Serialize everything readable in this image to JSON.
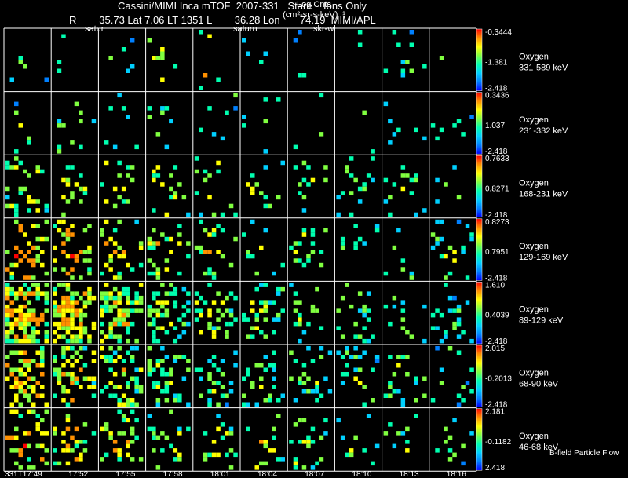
{
  "header": {
    "title": "Cassini/MIMI Inca mTOF  2007-331   Stare    Ions Only",
    "subtitle": "R        35.73 Lat 7.06 LT 1351 L        36.28 Lon       74.19  MIMI/APL",
    "units_line1": "Log Cnts",
    "units_line2": "(cm²-sr-s-keV)⁻¹"
  },
  "overlay_labels": [
    "satur",
    "saturn",
    "skr-wl"
  ],
  "footer": {
    "first_time": "331T17:49",
    "times": [
      "331T17:49",
      "17:52",
      "17:55",
      "17:58",
      "18:01",
      "18:04",
      "18:07",
      "18:10",
      "18:13",
      "18:16"
    ],
    "note": "B-field Particle Flow"
  },
  "colors": {
    "border": "#ffffff",
    "background": "#000000",
    "colormap": [
      "#0000ff",
      "#0080ff",
      "#00d0ff",
      "#00ffb0",
      "#80ff40",
      "#ffff00",
      "#ff9000",
      "#ff0000"
    ]
  },
  "chart_data": {
    "type": "heatmap",
    "description_grid": "7 energy-channel rows x 10 time columns of ENA images",
    "x_categories": [
      "331T17:49",
      "17:52",
      "17:55",
      "17:58",
      "18:01",
      "18:04",
      "18:07",
      "18:10",
      "18:13",
      "18:16"
    ],
    "rows": [
      {
        "species": "Oxygen",
        "energy": "331-589 keV",
        "cbar_max": "-0.3444",
        "cbar_mid": "-1.381",
        "cbar_min": "-2.418"
      },
      {
        "species": "Oxygen",
        "energy": "231-332 keV",
        "cbar_max": "0.3436",
        "cbar_mid": "1.037",
        "cbar_min": "-2.418"
      },
      {
        "species": "Oxygen",
        "energy": "168-231 keV",
        "cbar_max": "0.7633",
        "cbar_mid": "0.8271",
        "cbar_min": "-2.418"
      },
      {
        "species": "Oxygen",
        "energy": "129-169 keV",
        "cbar_max": "0.8273",
        "cbar_mid": "0.7951",
        "cbar_min": "-2.418"
      },
      {
        "species": "Oxygen",
        "energy": "89-129 keV",
        "cbar_max": "1.610",
        "cbar_mid": "0.4039",
        "cbar_min": "-2.418"
      },
      {
        "species": "Oxygen",
        "energy": "68-90 keV",
        "cbar_max": "2.015",
        "cbar_mid": "-0.2013",
        "cbar_min": "-2.418"
      },
      {
        "species": "Oxygen",
        "energy": "46-68 keV",
        "cbar_max": "2.181",
        "cbar_mid": "-0.1182",
        "cbar_min": "2.418"
      }
    ],
    "density": [
      [
        0.03,
        0.03,
        0.03,
        0.04,
        0.04,
        0.02,
        0.03,
        0.02,
        0.03,
        0.02
      ],
      [
        0.04,
        0.06,
        0.05,
        0.07,
        0.05,
        0.04,
        0.04,
        0.03,
        0.03,
        0.03
      ],
      [
        0.18,
        0.14,
        0.1,
        0.12,
        0.1,
        0.1,
        0.08,
        0.08,
        0.07,
        0.05
      ],
      [
        0.3,
        0.24,
        0.2,
        0.15,
        0.12,
        0.1,
        0.08,
        0.08,
        0.07,
        0.08
      ],
      [
        0.6,
        0.55,
        0.42,
        0.32,
        0.24,
        0.22,
        0.18,
        0.16,
        0.14,
        0.12
      ],
      [
        0.45,
        0.4,
        0.3,
        0.28,
        0.2,
        0.18,
        0.16,
        0.14,
        0.14,
        0.1
      ],
      [
        0.25,
        0.22,
        0.18,
        0.14,
        0.12,
        0.14,
        0.12,
        0.08,
        0.06,
        0.06
      ]
    ],
    "level": [
      [
        0.3,
        0.3,
        0.3,
        0.4,
        0.5,
        0.3,
        0.3,
        0.3,
        0.3,
        0.3
      ],
      [
        0.3,
        0.35,
        0.35,
        0.35,
        0.35,
        0.3,
        0.3,
        0.3,
        0.3,
        0.3
      ],
      [
        0.45,
        0.45,
        0.45,
        0.45,
        0.45,
        0.4,
        0.4,
        0.35,
        0.35,
        0.35
      ],
      [
        0.6,
        0.55,
        0.5,
        0.45,
        0.45,
        0.4,
        0.4,
        0.35,
        0.35,
        0.35
      ],
      [
        0.55,
        0.55,
        0.5,
        0.45,
        0.4,
        0.4,
        0.35,
        0.35,
        0.35,
        0.3
      ],
      [
        0.55,
        0.5,
        0.45,
        0.4,
        0.35,
        0.35,
        0.35,
        0.35,
        0.35,
        0.3
      ],
      [
        0.55,
        0.5,
        0.5,
        0.45,
        0.4,
        0.45,
        0.4,
        0.35,
        0.35,
        0.35
      ]
    ]
  }
}
